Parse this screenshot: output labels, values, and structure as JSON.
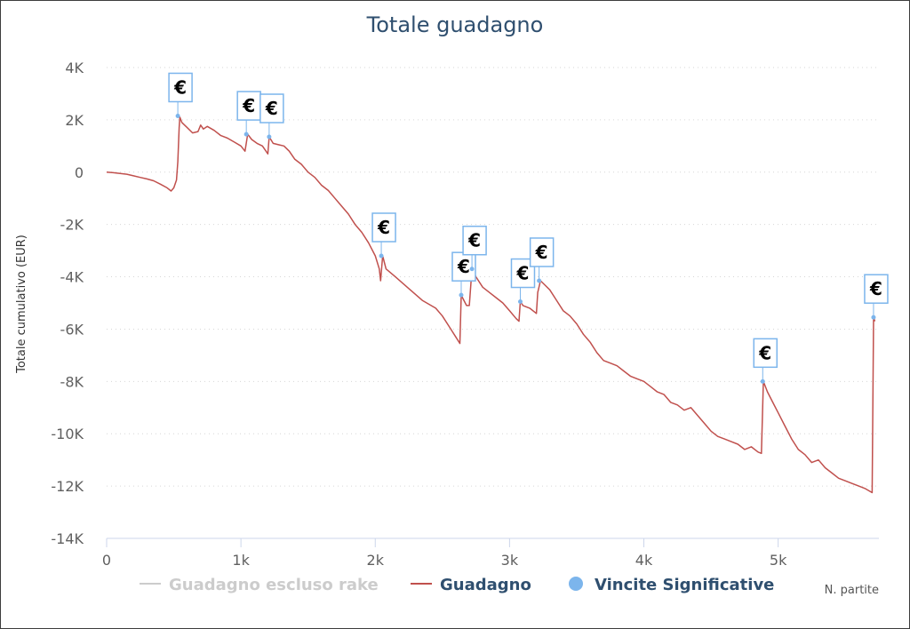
{
  "chart_data": {
    "type": "line",
    "title": "Totale guadagno",
    "ylabel": "Totale cumulativo (EUR)",
    "xlabel": "N. partite",
    "xlim": [
      0,
      5750
    ],
    "ylim": [
      -14000,
      4000
    ],
    "x_ticks": [
      {
        "value": 0,
        "label": "0"
      },
      {
        "value": 1000,
        "label": "1k"
      },
      {
        "value": 2000,
        "label": "2k"
      },
      {
        "value": 3000,
        "label": "3k"
      },
      {
        "value": 4000,
        "label": "4k"
      },
      {
        "value": 5000,
        "label": "5k"
      }
    ],
    "y_ticks": [
      {
        "value": 4000,
        "label": "4K"
      },
      {
        "value": 2000,
        "label": "2K"
      },
      {
        "value": 0,
        "label": "0"
      },
      {
        "value": -2000,
        "label": "-2K"
      },
      {
        "value": -4000,
        "label": "-4K"
      },
      {
        "value": -6000,
        "label": "-6K"
      },
      {
        "value": -8000,
        "label": "-8K"
      },
      {
        "value": -10000,
        "label": "-10K"
      },
      {
        "value": -12000,
        "label": "-12K"
      },
      {
        "value": -14000,
        "label": "-14K"
      }
    ],
    "grid": "horizontal dotted",
    "legend_position": "bottom",
    "series": [
      {
        "name": "Guadagno escluso rake",
        "color": "#cccccc",
        "hidden": true,
        "points": []
      },
      {
        "name": "Guadagno",
        "color": "#c0504d",
        "points": [
          [
            0,
            0
          ],
          [
            50,
            -20
          ],
          [
            100,
            -50
          ],
          [
            150,
            -80
          ],
          [
            200,
            -140
          ],
          [
            250,
            -200
          ],
          [
            300,
            -260
          ],
          [
            350,
            -330
          ],
          [
            400,
            -460
          ],
          [
            450,
            -600
          ],
          [
            480,
            -720
          ],
          [
            500,
            -600
          ],
          [
            520,
            -300
          ],
          [
            530,
            400
          ],
          [
            540,
            1700
          ],
          [
            545,
            2100
          ],
          [
            560,
            1900
          ],
          [
            600,
            1700
          ],
          [
            640,
            1500
          ],
          [
            680,
            1550
          ],
          [
            700,
            1800
          ],
          [
            720,
            1650
          ],
          [
            750,
            1750
          ],
          [
            800,
            1600
          ],
          [
            850,
            1400
          ],
          [
            900,
            1300
          ],
          [
            950,
            1150
          ],
          [
            1000,
            1000
          ],
          [
            1030,
            800
          ],
          [
            1050,
            1450
          ],
          [
            1080,
            1250
          ],
          [
            1120,
            1100
          ],
          [
            1160,
            1000
          ],
          [
            1200,
            700
          ],
          [
            1210,
            1350
          ],
          [
            1240,
            1100
          ],
          [
            1280,
            1050
          ],
          [
            1320,
            1000
          ],
          [
            1360,
            800
          ],
          [
            1400,
            500
          ],
          [
            1450,
            300
          ],
          [
            1500,
            0
          ],
          [
            1550,
            -200
          ],
          [
            1600,
            -500
          ],
          [
            1650,
            -700
          ],
          [
            1700,
            -1000
          ],
          [
            1750,
            -1300
          ],
          [
            1800,
            -1600
          ],
          [
            1850,
            -2000
          ],
          [
            1900,
            -2300
          ],
          [
            1950,
            -2700
          ],
          [
            2000,
            -3200
          ],
          [
            2030,
            -3700
          ],
          [
            2040,
            -4150
          ],
          [
            2055,
            -3200
          ],
          [
            2080,
            -3700
          ],
          [
            2150,
            -4000
          ],
          [
            2250,
            -4450
          ],
          [
            2350,
            -4900
          ],
          [
            2450,
            -5200
          ],
          [
            2500,
            -5500
          ],
          [
            2550,
            -5900
          ],
          [
            2600,
            -6300
          ],
          [
            2630,
            -6550
          ],
          [
            2640,
            -4700
          ],
          [
            2660,
            -4900
          ],
          [
            2680,
            -5100
          ],
          [
            2700,
            -5100
          ],
          [
            2720,
            -3700
          ],
          [
            2750,
            -4000
          ],
          [
            2800,
            -4400
          ],
          [
            2850,
            -4600
          ],
          [
            2900,
            -4800
          ],
          [
            2950,
            -5000
          ],
          [
            3000,
            -5300
          ],
          [
            3050,
            -5600
          ],
          [
            3070,
            -5700
          ],
          [
            3080,
            -4950
          ],
          [
            3100,
            -5100
          ],
          [
            3150,
            -5200
          ],
          [
            3200,
            -5400
          ],
          [
            3210,
            -4600
          ],
          [
            3230,
            -4150
          ],
          [
            3260,
            -4300
          ],
          [
            3300,
            -4500
          ],
          [
            3350,
            -4900
          ],
          [
            3400,
            -5300
          ],
          [
            3450,
            -5500
          ],
          [
            3500,
            -5800
          ],
          [
            3550,
            -6200
          ],
          [
            3600,
            -6500
          ],
          [
            3650,
            -6900
          ],
          [
            3700,
            -7200
          ],
          [
            3750,
            -7300
          ],
          [
            3800,
            -7400
          ],
          [
            3850,
            -7600
          ],
          [
            3900,
            -7800
          ],
          [
            3950,
            -7900
          ],
          [
            4000,
            -8000
          ],
          [
            4050,
            -8200
          ],
          [
            4100,
            -8400
          ],
          [
            4150,
            -8500
          ],
          [
            4200,
            -8800
          ],
          [
            4250,
            -8900
          ],
          [
            4300,
            -9100
          ],
          [
            4350,
            -9000
          ],
          [
            4400,
            -9300
          ],
          [
            4450,
            -9600
          ],
          [
            4500,
            -9900
          ],
          [
            4550,
            -10100
          ],
          [
            4600,
            -10200
          ],
          [
            4650,
            -10300
          ],
          [
            4700,
            -10400
          ],
          [
            4750,
            -10600
          ],
          [
            4800,
            -10500
          ],
          [
            4850,
            -10700
          ],
          [
            4875,
            -10750
          ],
          [
            4890,
            -8000
          ],
          [
            4920,
            -8400
          ],
          [
            4960,
            -8800
          ],
          [
            5000,
            -9200
          ],
          [
            5050,
            -9700
          ],
          [
            5100,
            -10200
          ],
          [
            5150,
            -10600
          ],
          [
            5200,
            -10800
          ],
          [
            5250,
            -11100
          ],
          [
            5300,
            -11000
          ],
          [
            5350,
            -11300
          ],
          [
            5400,
            -11500
          ],
          [
            5450,
            -11700
          ],
          [
            5500,
            -11800
          ],
          [
            5550,
            -11900
          ],
          [
            5600,
            -12000
          ],
          [
            5650,
            -12100
          ],
          [
            5700,
            -12250
          ],
          [
            5710,
            -5550
          ],
          [
            5720,
            -5700
          ]
        ]
      },
      {
        "name": "Vincite Significative",
        "color": "#7cb5ec",
        "marker_symbol": "€",
        "points": [
          [
            530,
            2150
          ],
          [
            1040,
            1450
          ],
          [
            1210,
            1350
          ],
          [
            2045,
            -3200
          ],
          [
            2640,
            -4700
          ],
          [
            2720,
            -3700
          ],
          [
            3080,
            -4950
          ],
          [
            3220,
            -4150
          ],
          [
            4885,
            -8000
          ],
          [
            5710,
            -5550
          ]
        ]
      }
    ]
  }
}
